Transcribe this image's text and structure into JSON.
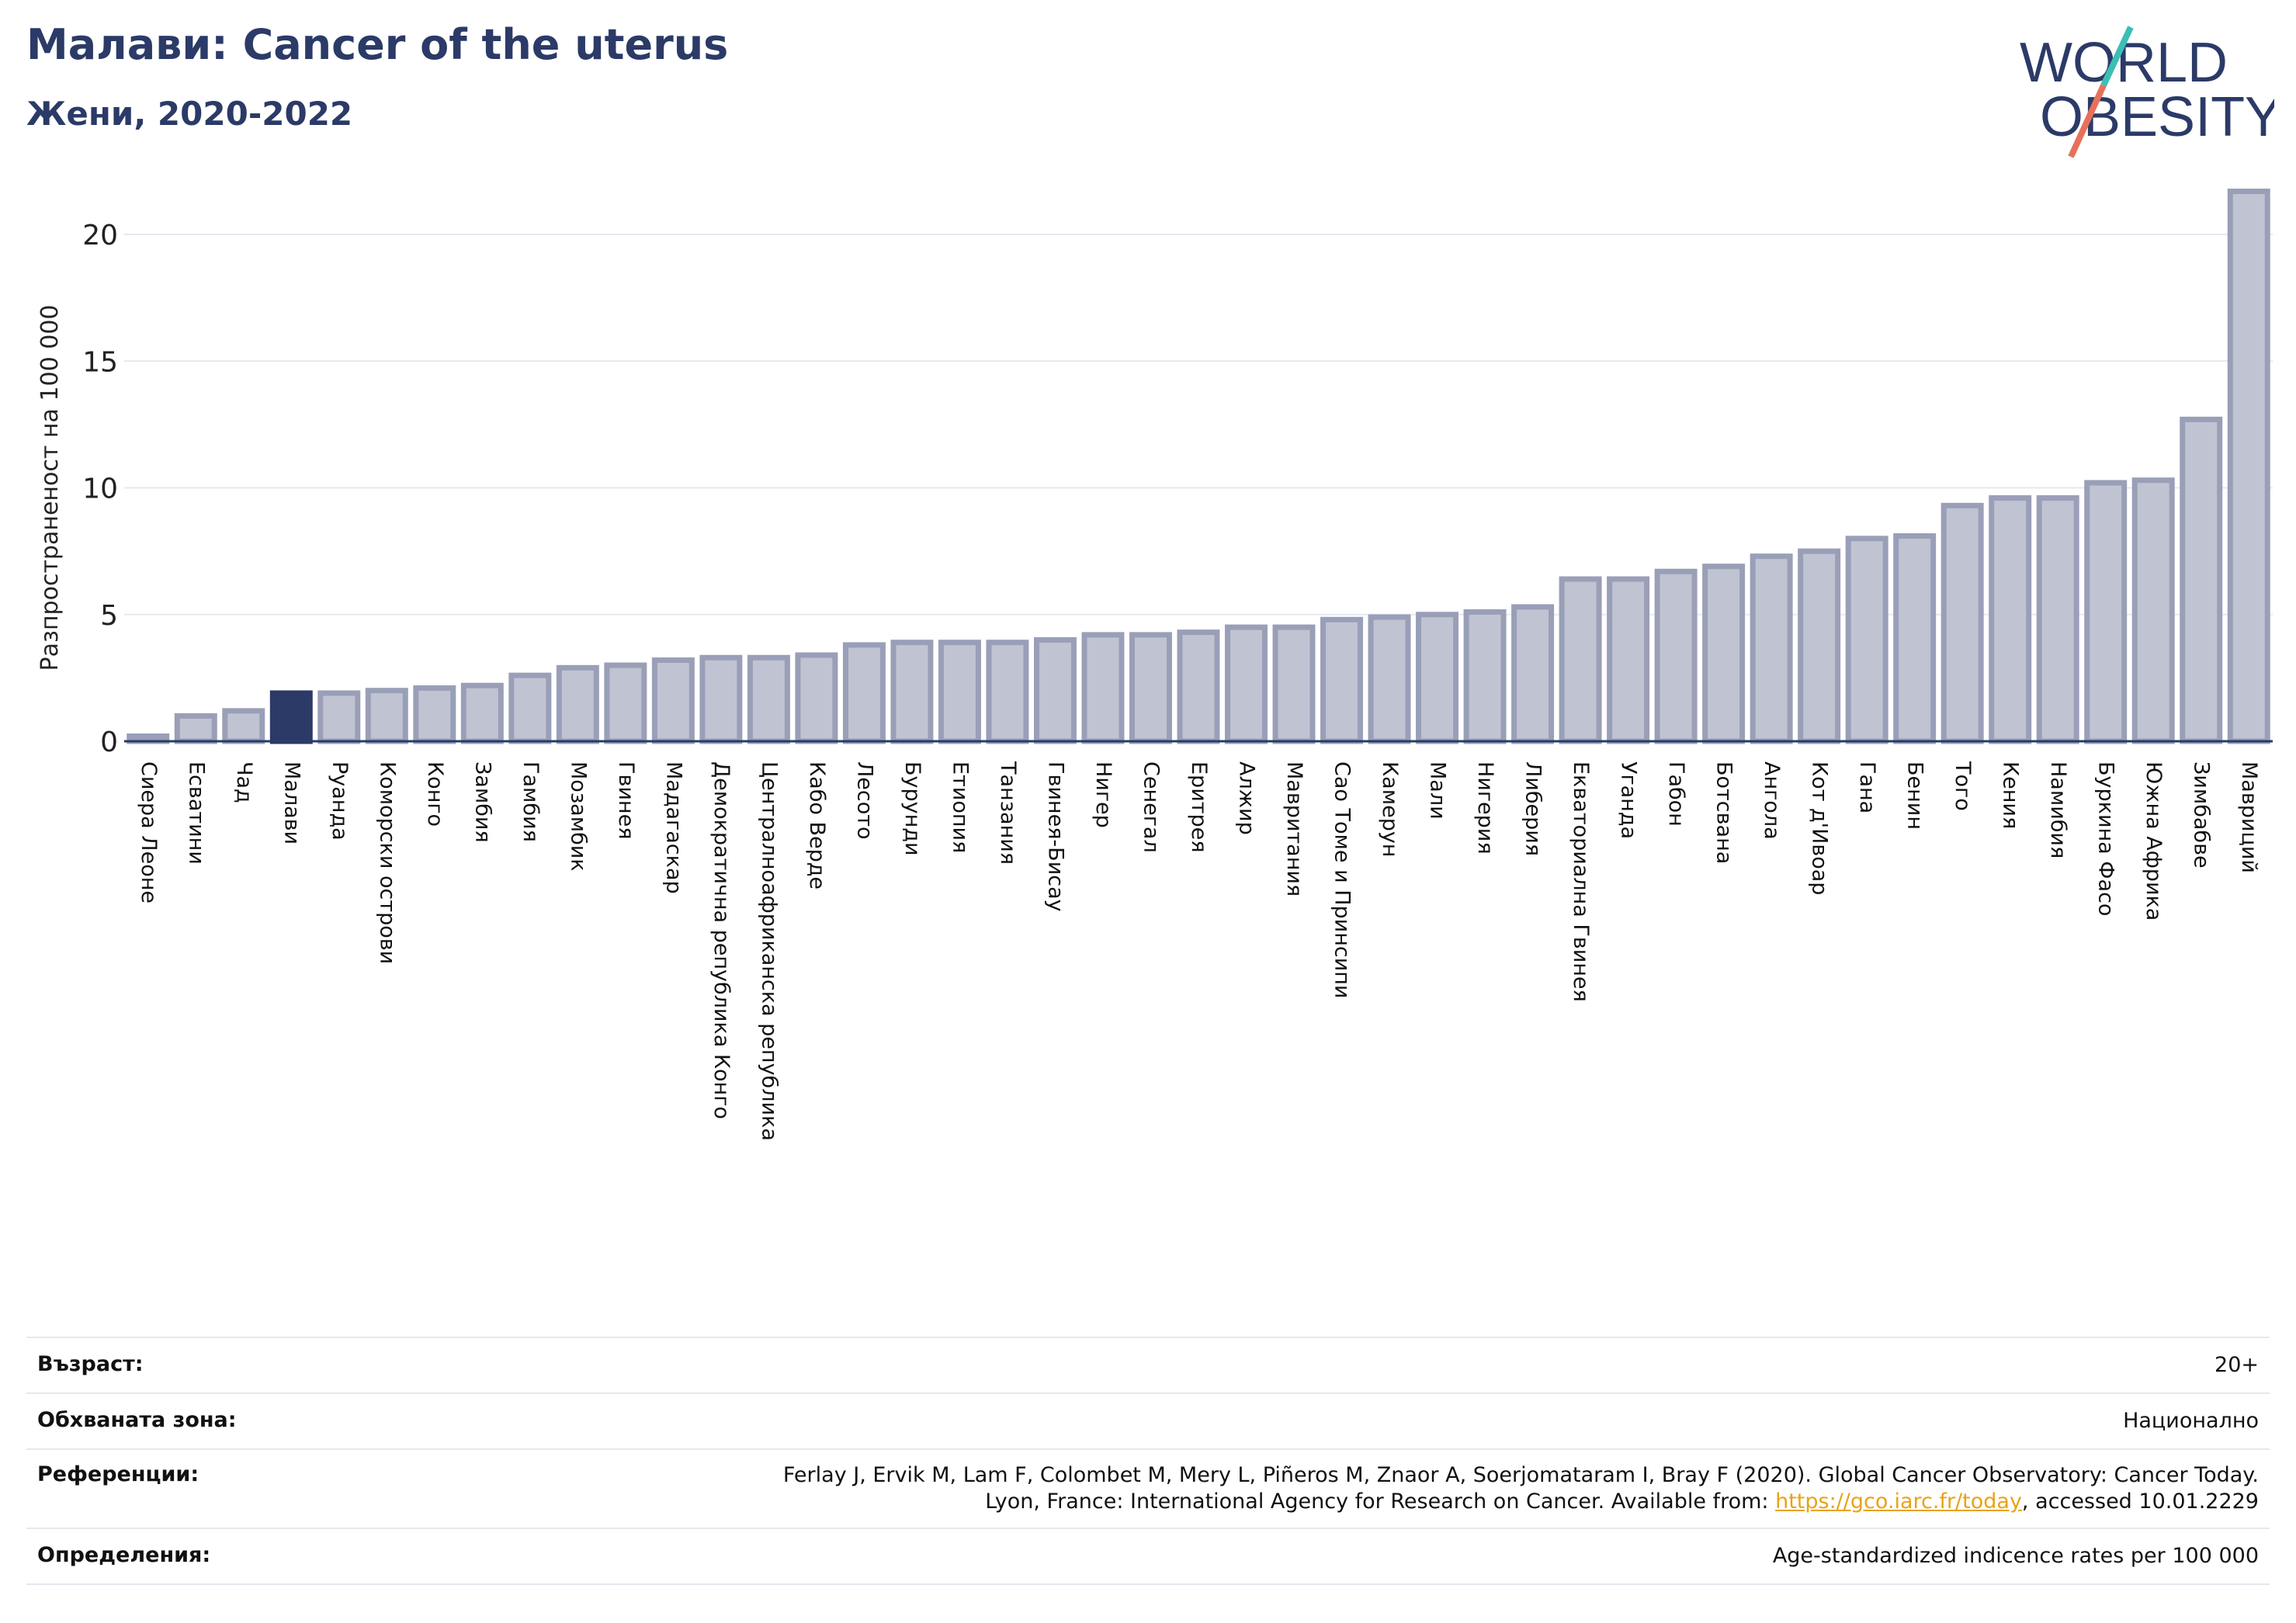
{
  "header": {
    "title": "Малави: Cancer of the uterus",
    "subtitle": "Жени, 2020-2022"
  },
  "logo": {
    "line1": "WORLD",
    "line2": "OBESITY",
    "colors": {
      "text": "#2b3a67",
      "slash_top": "#3bbfb5",
      "slash_bottom": "#e8705a"
    }
  },
  "chart_data": {
    "type": "bar",
    "ylabel": "Разпространеност  на 100 000",
    "ylim": [
      0,
      22
    ],
    "yticks": [
      0,
      5,
      10,
      15,
      20
    ],
    "grid": true,
    "highlight": "Малави",
    "colors": {
      "bar": "#c0c3d1",
      "bar_edge": "#9a9fb8",
      "highlight": "#2b3a67",
      "grid": "#e6e8ef"
    },
    "categories": [
      "Сиера Леоне",
      "Есватини",
      "Чад",
      "Малави",
      "Руанда",
      "Коморски острови",
      "Конго",
      "Замбия",
      "Гамбия",
      "Мозамбик",
      "Гвинея",
      "Мадагаскар",
      "Демократична република Конго",
      "Централноафриканска република",
      "Кабо Верде",
      "Лесото",
      "Бурунди",
      "Етиопия",
      "Танзания",
      "Гвинея-Бисау",
      "Нигер",
      "Сенегал",
      "Еритрея",
      "Алжир",
      "Мавритания",
      "Сао Томе и Принсипи",
      "Камерун",
      "Мали",
      "Нигерия",
      "Либерия",
      "Екваториална Гвинея",
      "Уганда",
      "Габон",
      "Ботсвана",
      "Ангола",
      "Кот д'Ивоар",
      "Гана",
      "Бенин",
      "Того",
      "Кения",
      "Намибия",
      "Буркина Фасо",
      "Южна Африка",
      "Зимбабве",
      "Мавриций"
    ],
    "values": [
      0.2,
      1.0,
      1.2,
      1.9,
      1.9,
      2.0,
      2.1,
      2.2,
      2.6,
      2.9,
      3.0,
      3.2,
      3.3,
      3.3,
      3.4,
      3.8,
      3.9,
      3.9,
      3.9,
      4.0,
      4.2,
      4.2,
      4.3,
      4.5,
      4.5,
      4.8,
      4.9,
      5.0,
      5.1,
      5.3,
      6.4,
      6.4,
      6.7,
      6.9,
      7.3,
      7.5,
      8.0,
      8.1,
      9.3,
      9.6,
      9.6,
      10.2,
      10.3,
      12.7,
      21.7
    ]
  },
  "info": {
    "age_label": "Възраст:",
    "age_value": "20+",
    "coverage_label": "Обхваната зона:",
    "coverage_value": "Национално",
    "references_label": "Референции:",
    "references_line1": "Ferlay J, Ervik M, Lam F, Colombet M, Mery L, Piñeros M, Znaor A, Soerjomataram I, Bray F (2020). Global Cancer Observatory: Cancer Today.",
    "references_line2_prefix": "Lyon, France: International Agency for Research on Cancer. Available from: ",
    "references_link": "https://gco.iarc.fr/today",
    "references_line2_suffix": ", accessed 10.01.2229",
    "definitions_label": "Определения:",
    "definitions_value": "Age-standardized indicence rates per 100 000"
  }
}
